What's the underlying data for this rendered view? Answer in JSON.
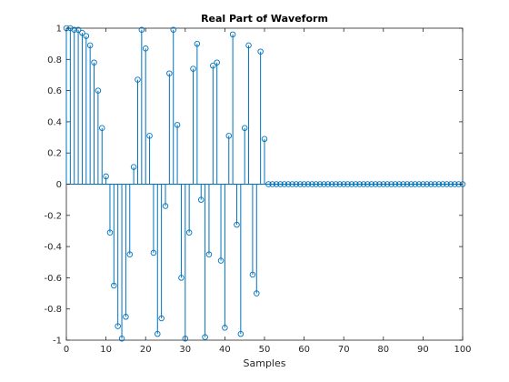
{
  "chart_data": {
    "type": "stem",
    "title": "Real Part of Waveform",
    "xlabel": "Samples",
    "ylabel": "",
    "xlim": [
      0,
      100
    ],
    "ylim": [
      -1,
      1
    ],
    "grid": false,
    "legend": "none",
    "xticks": [
      "0",
      "10",
      "20",
      "30",
      "40",
      "50",
      "60",
      "70",
      "80",
      "90",
      "100"
    ],
    "yticks": [
      "-1",
      "-0.8",
      "-0.6",
      "-0.4",
      "-0.2",
      "0",
      "0.2",
      "0.4",
      "0.6",
      "0.8",
      "1"
    ],
    "xtick_values": [
      0,
      10,
      20,
      30,
      40,
      50,
      60,
      70,
      80,
      90,
      100
    ],
    "ytick_values": [
      -1,
      -0.8,
      -0.6,
      -0.4,
      -0.2,
      0,
      0.2,
      0.4,
      0.6,
      0.8,
      1
    ],
    "color": "#0072BD",
    "series": [
      {
        "x": [
          0,
          1,
          2,
          3,
          4,
          5,
          6,
          7,
          8,
          9,
          10,
          11,
          12,
          13,
          14,
          15,
          16,
          17,
          18,
          19,
          20,
          21,
          22,
          23,
          24,
          25,
          26,
          27,
          28,
          29,
          30,
          31,
          32,
          33,
          34,
          35,
          36,
          37,
          38,
          39,
          40,
          41,
          42,
          43,
          44,
          45,
          46,
          47,
          48,
          49,
          50,
          51,
          52,
          53,
          54,
          55,
          56,
          57,
          58,
          59,
          60,
          61,
          62,
          63,
          64,
          65,
          66,
          67,
          68,
          69,
          70,
          71,
          72,
          73,
          74,
          75,
          76,
          77,
          78,
          79,
          80,
          81,
          82,
          83,
          84,
          85,
          86,
          87,
          88,
          89,
          90,
          91,
          92,
          93,
          94,
          95,
          96,
          97,
          98,
          99,
          100
        ],
        "values": [
          1,
          1,
          0.99,
          0.99,
          0.97,
          0.95,
          0.89,
          0.78,
          0.6,
          0.36,
          0.05,
          -0.31,
          -0.65,
          -0.91,
          -0.99,
          -0.85,
          -0.45,
          0.11,
          0.67,
          0.99,
          0.87,
          0.31,
          -0.44,
          -0.96,
          -0.86,
          -0.14,
          0.71,
          0.99,
          0.38,
          -0.6,
          -0.99,
          -0.31,
          0.74,
          0.9,
          -0.1,
          -0.98,
          -0.45,
          0.76,
          0.78,
          -0.49,
          -0.92,
          0.31,
          0.96,
          -0.26,
          -0.96,
          0.36,
          0.89,
          -0.58,
          -0.7,
          0.85,
          0.29,
          0,
          0,
          0,
          0,
          0,
          0,
          0,
          0,
          0,
          0,
          0,
          0,
          0,
          0,
          0,
          0,
          0,
          0,
          0,
          0,
          0,
          0,
          0,
          0,
          0,
          0,
          0,
          0,
          0,
          0,
          0,
          0,
          0,
          0,
          0,
          0,
          0,
          0,
          0,
          0,
          0,
          0,
          0,
          0,
          0,
          0,
          0,
          0,
          0,
          0
        ]
      }
    ]
  }
}
